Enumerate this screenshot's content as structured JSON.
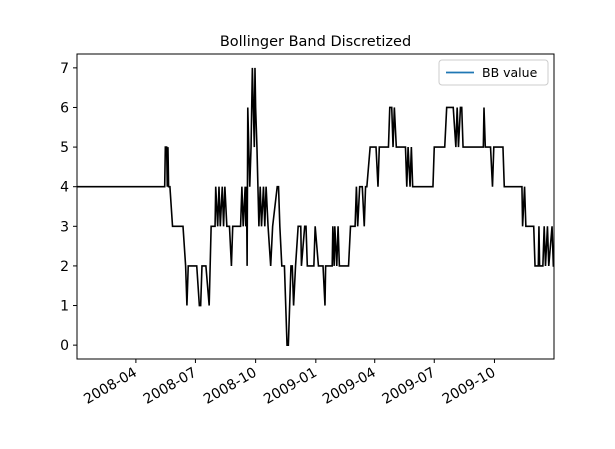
{
  "chart_data": {
    "type": "line",
    "title": "Bollinger Band Discretized",
    "xlabel": "",
    "ylabel": "",
    "legend": {
      "placement": "top-right",
      "entries": [
        {
          "label": "BB value",
          "color": "#1f77b4"
        }
      ]
    },
    "line_color": "#000000",
    "xlim": [
      "2008-01-02",
      "2009-12-31"
    ],
    "ylim": [
      -0.35,
      7.35
    ],
    "x_ticks": [
      {
        "date": "2008-04-01",
        "label": "2008-04"
      },
      {
        "date": "2008-07-01",
        "label": "2008-07"
      },
      {
        "date": "2008-10-01",
        "label": "2008-10"
      },
      {
        "date": "2009-01-01",
        "label": "2009-01"
      },
      {
        "date": "2009-04-01",
        "label": "2009-04"
      },
      {
        "date": "2009-07-01",
        "label": "2009-07"
      },
      {
        "date": "2009-10-01",
        "label": "2009-10"
      }
    ],
    "y_ticks": [
      "0",
      "1",
      "2",
      "3",
      "4",
      "5",
      "6",
      "7"
    ],
    "grid": false,
    "series": [
      {
        "name": "BB value",
        "points": [
          [
            "2008-01-02",
            4
          ],
          [
            "2008-05-15",
            4
          ],
          [
            "2008-05-16",
            5
          ],
          [
            "2008-05-18",
            5
          ],
          [
            "2008-05-19",
            4
          ],
          [
            "2008-05-20",
            5
          ],
          [
            "2008-05-21",
            4
          ],
          [
            "2008-05-23",
            4
          ],
          [
            "2008-05-27",
            3
          ],
          [
            "2008-06-12",
            3
          ],
          [
            "2008-06-16",
            2
          ],
          [
            "2008-06-18",
            1
          ],
          [
            "2008-06-20",
            2
          ],
          [
            "2008-07-03",
            2
          ],
          [
            "2008-07-07",
            1
          ],
          [
            "2008-07-09",
            1
          ],
          [
            "2008-07-11",
            2
          ],
          [
            "2008-07-17",
            2
          ],
          [
            "2008-07-22",
            1
          ],
          [
            "2008-07-25",
            3
          ],
          [
            "2008-07-31",
            3
          ],
          [
            "2008-08-01",
            4
          ],
          [
            "2008-08-04",
            3
          ],
          [
            "2008-08-06",
            4
          ],
          [
            "2008-08-08",
            3
          ],
          [
            "2008-08-11",
            4
          ],
          [
            "2008-08-13",
            3
          ],
          [
            "2008-08-15",
            4
          ],
          [
            "2008-08-18",
            3
          ],
          [
            "2008-08-22",
            3
          ],
          [
            "2008-08-25",
            2
          ],
          [
            "2008-08-27",
            3
          ],
          [
            "2008-09-08",
            3
          ],
          [
            "2008-09-10",
            4
          ],
          [
            "2008-09-12",
            3
          ],
          [
            "2008-09-15",
            4
          ],
          [
            "2008-09-16",
            3
          ],
          [
            "2008-09-17",
            4
          ],
          [
            "2008-09-18",
            2
          ],
          [
            "2008-09-19",
            6
          ],
          [
            "2008-09-22",
            4
          ],
          [
            "2008-09-24",
            5
          ],
          [
            "2008-09-26",
            7
          ],
          [
            "2008-09-29",
            5
          ],
          [
            "2008-09-30",
            7
          ],
          [
            "2008-10-01",
            6
          ],
          [
            "2008-10-03",
            5
          ],
          [
            "2008-10-06",
            3
          ],
          [
            "2008-10-08",
            4
          ],
          [
            "2008-10-10",
            3
          ],
          [
            "2008-10-13",
            4
          ],
          [
            "2008-10-15",
            3
          ],
          [
            "2008-10-17",
            4
          ],
          [
            "2008-10-20",
            3
          ],
          [
            "2008-10-24",
            2
          ],
          [
            "2008-10-27",
            3
          ],
          [
            "2008-11-03",
            4
          ],
          [
            "2008-11-05",
            4
          ],
          [
            "2008-11-07",
            3
          ],
          [
            "2008-11-10",
            2
          ],
          [
            "2008-11-14",
            2
          ],
          [
            "2008-11-18",
            0
          ],
          [
            "2008-11-20",
            0
          ],
          [
            "2008-11-24",
            2
          ],
          [
            "2008-11-26",
            2
          ],
          [
            "2008-11-28",
            1
          ],
          [
            "2008-12-01",
            2
          ],
          [
            "2008-12-05",
            3
          ],
          [
            "2008-12-09",
            3
          ],
          [
            "2008-12-10",
            2
          ],
          [
            "2008-12-15",
            3
          ],
          [
            "2008-12-17",
            3
          ],
          [
            "2008-12-19",
            2
          ],
          [
            "2008-12-29",
            2
          ],
          [
            "2008-12-31",
            3
          ],
          [
            "2009-01-05",
            2
          ],
          [
            "2009-01-07",
            2
          ],
          [
            "2009-01-12",
            2
          ],
          [
            "2009-01-15",
            1
          ],
          [
            "2009-01-16",
            2
          ],
          [
            "2009-01-26",
            2
          ],
          [
            "2009-01-27",
            3
          ],
          [
            "2009-01-29",
            2
          ],
          [
            "2009-01-30",
            3
          ],
          [
            "2009-02-02",
            2
          ],
          [
            "2009-02-04",
            3
          ],
          [
            "2009-02-06",
            2
          ],
          [
            "2009-02-11",
            2
          ],
          [
            "2009-02-18",
            2
          ],
          [
            "2009-02-20",
            2
          ],
          [
            "2009-02-23",
            3
          ],
          [
            "2009-03-02",
            3
          ],
          [
            "2009-03-04",
            4
          ],
          [
            "2009-03-06",
            3
          ],
          [
            "2009-03-09",
            4
          ],
          [
            "2009-03-13",
            4
          ],
          [
            "2009-03-16",
            3
          ],
          [
            "2009-03-18",
            4
          ],
          [
            "2009-03-20",
            4
          ],
          [
            "2009-03-25",
            5
          ],
          [
            "2009-04-01",
            5
          ],
          [
            "2009-04-03",
            5
          ],
          [
            "2009-04-06",
            4
          ],
          [
            "2009-04-08",
            5
          ],
          [
            "2009-04-14",
            5
          ],
          [
            "2009-04-20",
            5
          ],
          [
            "2009-04-22",
            5
          ],
          [
            "2009-04-24",
            6
          ],
          [
            "2009-04-27",
            6
          ],
          [
            "2009-04-29",
            5
          ],
          [
            "2009-05-01",
            6
          ],
          [
            "2009-05-04",
            5
          ],
          [
            "2009-05-08",
            5
          ],
          [
            "2009-05-18",
            5
          ],
          [
            "2009-05-20",
            4
          ],
          [
            "2009-05-22",
            5
          ],
          [
            "2009-05-25",
            4
          ],
          [
            "2009-05-27",
            5
          ],
          [
            "2009-05-29",
            4
          ],
          [
            "2009-06-29",
            4
          ],
          [
            "2009-07-01",
            5
          ],
          [
            "2009-07-17",
            5
          ],
          [
            "2009-07-20",
            6
          ],
          [
            "2009-07-30",
            6
          ],
          [
            "2009-08-03",
            5
          ],
          [
            "2009-08-05",
            6
          ],
          [
            "2009-08-07",
            5
          ],
          [
            "2009-08-10",
            6
          ],
          [
            "2009-08-12",
            6
          ],
          [
            "2009-08-14",
            5
          ],
          [
            "2009-09-14",
            5
          ],
          [
            "2009-09-15",
            6
          ],
          [
            "2009-09-17",
            5
          ],
          [
            "2009-09-25",
            5
          ],
          [
            "2009-09-28",
            4
          ],
          [
            "2009-09-30",
            5
          ],
          [
            "2009-10-14",
            5
          ],
          [
            "2009-10-16",
            4
          ],
          [
            "2009-11-12",
            4
          ],
          [
            "2009-11-13",
            3
          ],
          [
            "2009-11-16",
            4
          ],
          [
            "2009-11-18",
            3
          ],
          [
            "2009-11-30",
            3
          ],
          [
            "2009-12-02",
            2
          ],
          [
            "2009-12-07",
            2
          ],
          [
            "2009-12-08",
            3
          ],
          [
            "2009-12-09",
            2
          ],
          [
            "2009-12-14",
            2
          ],
          [
            "2009-12-16",
            3
          ],
          [
            "2009-12-18",
            2
          ],
          [
            "2009-12-21",
            3
          ],
          [
            "2009-12-23",
            2
          ],
          [
            "2009-12-28",
            3
          ],
          [
            "2009-12-30",
            2
          ],
          [
            "2009-12-31",
            2
          ]
        ]
      }
    ]
  }
}
